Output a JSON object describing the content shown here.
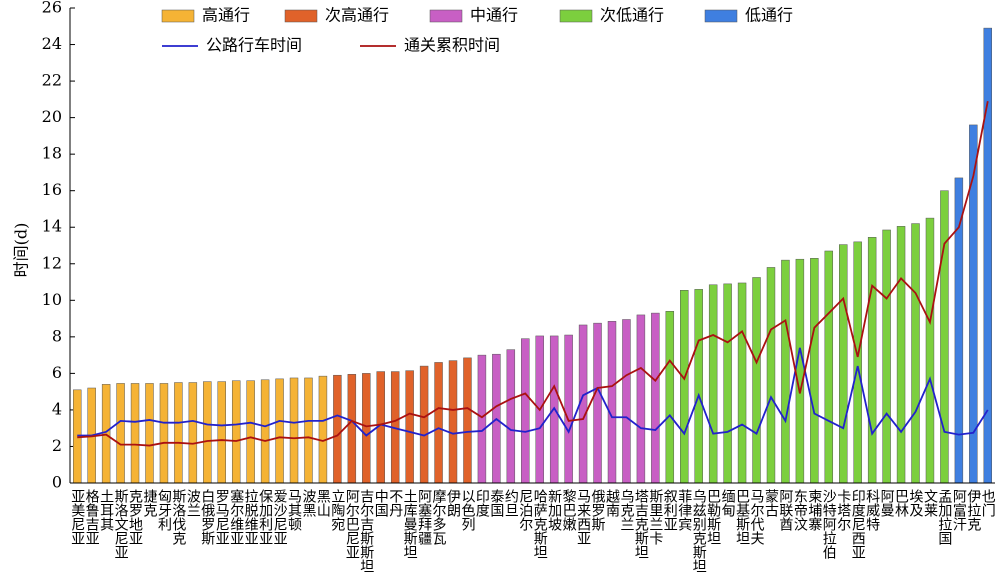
{
  "chart_data": {
    "type": "bar",
    "y_label": "时间(d)",
    "categories": [
      "亚美尼亚",
      "格鲁吉亚",
      "土耳其",
      "斯洛文尼亚",
      "克罗地亚",
      "捷克",
      "匈牙利",
      "斯洛伐克",
      "波兰",
      "白俄罗斯",
      "罗马尼亚",
      "塞尔维亚",
      "拉脱维亚",
      "保加利亚",
      "爱沙尼亚",
      "马其顿",
      "波黑",
      "黑山",
      "立陶宛",
      "阿尔巴尼亚",
      "吉尔吉斯斯坦",
      "中国",
      "不丹",
      "土库曼斯坦",
      "阿塞拜疆",
      "摩尔多瓦",
      "伊朗",
      "以色列",
      "印度",
      "泰国",
      "约旦",
      "尼泊尔",
      "哈萨克斯坦",
      "新加坡",
      "黎巴嫩",
      "马来西亚",
      "俄罗斯",
      "越南",
      "乌克兰",
      "塔吉克斯坦",
      "斯里兰卡",
      "叙利亚",
      "菲律宾",
      "乌兹别克斯坦",
      "巴勒斯坦",
      "缅甸",
      "巴基斯坦",
      "马尔代夫",
      "蒙古",
      "阿联酋",
      "东帝汶",
      "柬埔寨",
      "沙特阿拉伯",
      "卡塔尔",
      "印度尼西亚",
      "科威特",
      "阿曼",
      "巴林",
      "埃及",
      "文莱",
      "孟加拉国",
      "阿富汗",
      "伊拉克",
      "也门"
    ],
    "series": [
      {
        "name": "高通行",
        "type": "bar",
        "color": "#f5b335",
        "values": [
          5.1,
          5.2,
          5.4,
          5.45,
          5.45,
          5.45,
          5.45,
          5.5,
          5.5,
          5.55,
          5.55,
          5.6,
          5.6,
          5.65,
          5.7,
          5.75,
          5.75,
          5.85,
          null,
          null,
          null,
          null,
          null,
          null,
          null,
          null,
          null,
          null,
          null,
          null,
          null,
          null,
          null,
          null,
          null,
          null,
          null,
          null,
          null,
          null,
          null,
          null,
          null,
          null,
          null,
          null,
          null,
          null,
          null,
          null,
          null,
          null,
          null,
          null,
          null,
          null,
          null,
          null,
          null,
          null,
          null,
          null,
          null,
          null
        ]
      },
      {
        "name": "次高通行",
        "type": "bar",
        "color": "#e0622a",
        "values": [
          null,
          null,
          null,
          null,
          null,
          null,
          null,
          null,
          null,
          null,
          null,
          null,
          null,
          null,
          null,
          null,
          null,
          null,
          5.9,
          5.95,
          6.0,
          6.1,
          6.1,
          6.15,
          6.4,
          6.6,
          6.7,
          6.85,
          null,
          null,
          null,
          null,
          null,
          null,
          null,
          null,
          null,
          null,
          null,
          null,
          null,
          null,
          null,
          null,
          null,
          null,
          null,
          null,
          null,
          null,
          null,
          null,
          null,
          null,
          null,
          null,
          null,
          null,
          null,
          null,
          null,
          null,
          null,
          null
        ]
      },
      {
        "name": "中通行",
        "type": "bar",
        "color": "#c85fc4",
        "values": [
          null,
          null,
          null,
          null,
          null,
          null,
          null,
          null,
          null,
          null,
          null,
          null,
          null,
          null,
          null,
          null,
          null,
          null,
          null,
          null,
          null,
          null,
          null,
          null,
          null,
          null,
          null,
          null,
          7.0,
          7.05,
          7.3,
          7.9,
          8.05,
          8.05,
          8.1,
          8.65,
          8.75,
          8.85,
          8.95,
          9.2,
          9.3,
          null,
          null,
          null,
          null,
          null,
          null,
          null,
          null,
          null,
          null,
          null,
          null,
          null,
          null,
          null,
          null,
          null,
          null,
          null,
          null,
          null,
          null,
          null
        ]
      },
      {
        "name": "次低通行",
        "type": "bar",
        "color": "#7ccf3e",
        "values": [
          null,
          null,
          null,
          null,
          null,
          null,
          null,
          null,
          null,
          null,
          null,
          null,
          null,
          null,
          null,
          null,
          null,
          null,
          null,
          null,
          null,
          null,
          null,
          null,
          null,
          null,
          null,
          null,
          null,
          null,
          null,
          null,
          null,
          null,
          null,
          null,
          null,
          null,
          null,
          null,
          null,
          9.4,
          10.55,
          10.6,
          10.85,
          10.9,
          10.95,
          11.25,
          11.8,
          12.2,
          12.25,
          12.3,
          12.7,
          13.05,
          13.2,
          13.45,
          13.85,
          14.05,
          14.2,
          14.5,
          16.0,
          null,
          null,
          null
        ]
      },
      {
        "name": "低通行",
        "type": "bar",
        "color": "#3f7fe0",
        "values": [
          null,
          null,
          null,
          null,
          null,
          null,
          null,
          null,
          null,
          null,
          null,
          null,
          null,
          null,
          null,
          null,
          null,
          null,
          null,
          null,
          null,
          null,
          null,
          null,
          null,
          null,
          null,
          null,
          null,
          null,
          null,
          null,
          null,
          null,
          null,
          null,
          null,
          null,
          null,
          null,
          null,
          null,
          null,
          null,
          null,
          null,
          null,
          null,
          null,
          null,
          null,
          null,
          null,
          null,
          null,
          null,
          null,
          null,
          null,
          null,
          null,
          16.7,
          19.6,
          24.9
        ]
      },
      {
        "name": "公路行车时间",
        "type": "line",
        "color": "#2222cc",
        "values": [
          2.6,
          2.6,
          2.8,
          3.4,
          3.35,
          3.45,
          3.3,
          3.3,
          3.4,
          3.2,
          3.15,
          3.2,
          3.3,
          3.1,
          3.4,
          3.3,
          3.4,
          3.4,
          3.7,
          3.4,
          2.6,
          3.2,
          3.0,
          2.8,
          2.6,
          3.0,
          2.7,
          2.8,
          2.85,
          3.5,
          2.9,
          2.8,
          3.0,
          4.1,
          2.8,
          4.8,
          5.2,
          3.6,
          3.6,
          3.0,
          2.9,
          3.7,
          2.7,
          4.8,
          2.7,
          2.8,
          3.2,
          2.7,
          4.7,
          3.4,
          7.4,
          3.8,
          3.4,
          3.0,
          6.4,
          2.7,
          3.8,
          2.8,
          3.9,
          5.7,
          2.8,
          2.65,
          2.75,
          4.0
        ]
      },
      {
        "name": "通关累积时间",
        "type": "line",
        "color": "#aa1111",
        "values": [
          2.5,
          2.55,
          2.65,
          2.1,
          2.1,
          2.05,
          2.2,
          2.2,
          2.15,
          2.3,
          2.35,
          2.3,
          2.5,
          2.3,
          2.5,
          2.45,
          2.5,
          2.3,
          2.6,
          3.4,
          3.1,
          3.2,
          3.4,
          3.8,
          3.6,
          4.1,
          4.0,
          4.1,
          3.6,
          4.2,
          4.6,
          4.9,
          4.0,
          5.3,
          3.4,
          3.5,
          5.2,
          5.3,
          5.9,
          6.3,
          5.6,
          6.7,
          5.7,
          7.8,
          8.1,
          7.7,
          8.3,
          6.6,
          8.4,
          8.9,
          4.9,
          8.5,
          9.3,
          10.1,
          6.9,
          10.8,
          10.1,
          11.2,
          10.4,
          8.8,
          13.1,
          14.0,
          16.8,
          20.9
        ]
      }
    ],
    "ylim": [
      0,
      26
    ],
    "yticks": [
      0,
      2,
      4,
      6,
      8,
      10,
      12,
      14,
      16,
      18,
      20,
      22,
      24,
      26
    ],
    "grid": false
  }
}
